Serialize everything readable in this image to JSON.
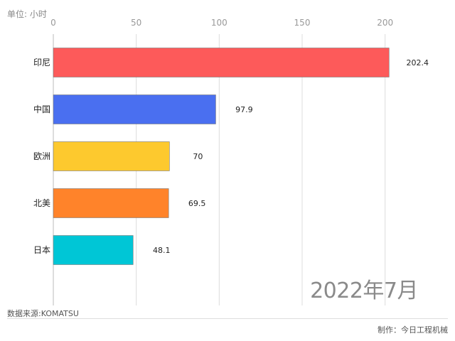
{
  "header": {
    "unit": "单位: 小时"
  },
  "footer": {
    "source": "数据来源:KOMATSU",
    "maker": "制作：今日工程机械"
  },
  "period_label": "2022年7月",
  "chart_data": {
    "type": "bar",
    "orientation": "horizontal",
    "categories": [
      "印尼",
      "中国",
      "欧洲",
      "北美",
      "日本"
    ],
    "values": [
      202.4,
      97.9,
      70,
      69.5,
      48.1
    ],
    "value_labels": [
      "202.4",
      "97.9",
      "70",
      "69.5",
      "48.1"
    ],
    "colors": [
      "#fd5a5a",
      "#4a6ff0",
      "#fdc92e",
      "#ff832a",
      "#00c6d6"
    ],
    "xlim": [
      0,
      210
    ],
    "xticks": [
      0,
      50,
      100,
      150,
      200
    ],
    "tick_position": "top",
    "grid": true,
    "title": "",
    "xlabel": "",
    "ylabel": ""
  }
}
